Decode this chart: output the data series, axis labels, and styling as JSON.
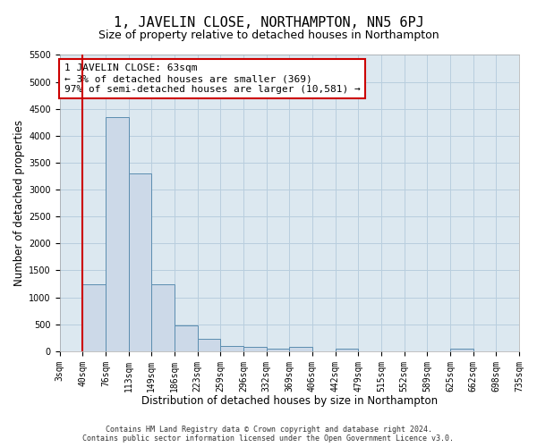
{
  "title": "1, JAVELIN CLOSE, NORTHAMPTON, NN5 6PJ",
  "subtitle": "Size of property relative to detached houses in Northampton",
  "xlabel": "Distribution of detached houses by size in Northampton",
  "ylabel": "Number of detached properties",
  "footer_line1": "Contains HM Land Registry data © Crown copyright and database right 2024.",
  "footer_line2": "Contains public sector information licensed under the Open Government Licence v3.0.",
  "bin_labels": [
    "3sqm",
    "40sqm",
    "76sqm",
    "113sqm",
    "149sqm",
    "186sqm",
    "223sqm",
    "259sqm",
    "296sqm",
    "332sqm",
    "369sqm",
    "406sqm",
    "442sqm",
    "479sqm",
    "515sqm",
    "552sqm",
    "589sqm",
    "625sqm",
    "662sqm",
    "698sqm",
    "735sqm"
  ],
  "bar_values": [
    0,
    1250,
    4350,
    3300,
    1250,
    475,
    225,
    100,
    80,
    50,
    75,
    0,
    50,
    0,
    0,
    0,
    0,
    55,
    0,
    0,
    0
  ],
  "bar_color": "#ccd9e8",
  "bar_edge_color": "#5b8db0",
  "vline_x_index": 1,
  "vline_color": "#cc0000",
  "ylim": [
    0,
    5500
  ],
  "yticks": [
    0,
    500,
    1000,
    1500,
    2000,
    2500,
    3000,
    3500,
    4000,
    4500,
    5000,
    5500
  ],
  "annotation_text": "1 JAVELIN CLOSE: 63sqm\n← 3% of detached houses are smaller (369)\n97% of semi-detached houses are larger (10,581) →",
  "annotation_box_color": "#ffffff",
  "annotation_box_edge": "#cc0000",
  "bg_color": "#ffffff",
  "plot_bg_color": "#dce8f0",
  "grid_color": "#b8cede",
  "title_fontsize": 11,
  "subtitle_fontsize": 9,
  "axis_label_fontsize": 8.5,
  "tick_fontsize": 7,
  "annotation_fontsize": 8,
  "footer_fontsize": 6
}
